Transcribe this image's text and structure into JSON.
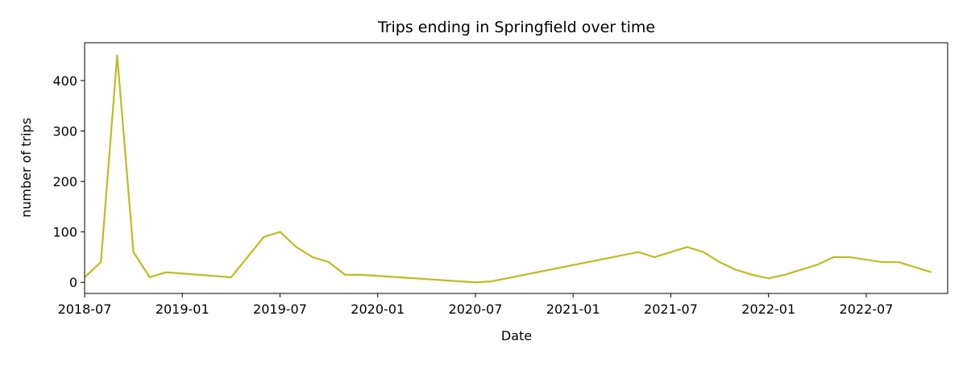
{
  "chart_data": {
    "type": "line",
    "title": "Trips ending in Springfield over time",
    "x_label": "Date",
    "y_label": "number of trips",
    "x": [
      "2018-07",
      "2018-08",
      "2018-09",
      "2018-10",
      "2018-11",
      "2018-12",
      "2019-04",
      "2019-05",
      "2019-06",
      "2019-07",
      "2019-08",
      "2019-09",
      "2019-10",
      "2019-11",
      "2019-12",
      "2020-07",
      "2020-08",
      "2021-05",
      "2021-06",
      "2021-07",
      "2021-08",
      "2021-09",
      "2021-10",
      "2021-11",
      "2021-12",
      "2022-01",
      "2022-02",
      "2022-03",
      "2022-04",
      "2022-05",
      "2022-06",
      "2022-07",
      "2022-08",
      "2022-09",
      "2022-10",
      "2022-11"
    ],
    "series": [
      {
        "name": "trips",
        "color": "#bcbd22",
        "values": [
          10,
          40,
          450,
          60,
          10,
          20,
          10,
          50,
          90,
          100,
          70,
          50,
          40,
          15,
          15,
          0,
          2,
          60,
          50,
          60,
          70,
          60,
          40,
          25,
          15,
          8,
          15,
          25,
          35,
          50,
          50,
          45,
          40,
          40,
          30,
          20
        ]
      }
    ],
    "xlim": [
      "2018-07",
      "2022-12"
    ],
    "xticks": [
      "2018-07",
      "2019-01",
      "2019-07",
      "2020-01",
      "2020-07",
      "2021-01",
      "2021-07",
      "2022-01",
      "2022-07"
    ],
    "ylim": [
      -22,
      475
    ],
    "yticks": [
      0,
      100,
      200,
      300,
      400
    ],
    "grid": false
  }
}
